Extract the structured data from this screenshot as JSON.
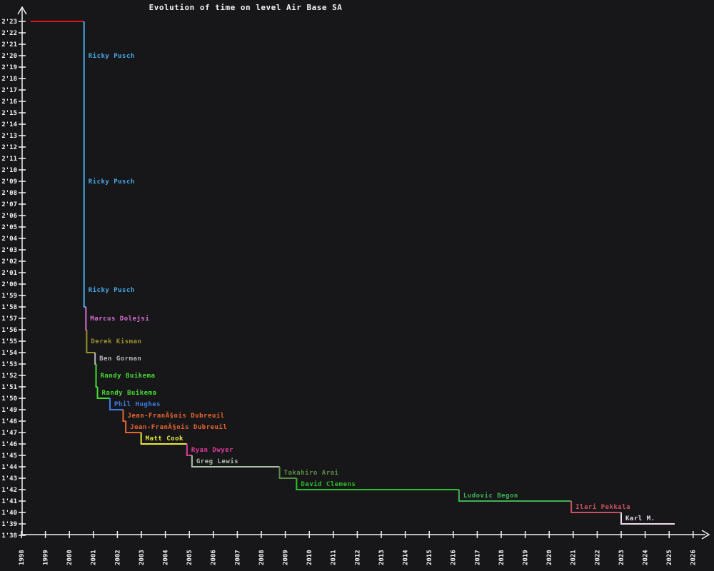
{
  "chart_data": {
    "type": "line",
    "subtype": "step-record-progression",
    "title": "Evolution of time on level Air Base SA",
    "background_color": "#17171a",
    "axis_color": "#f2f2f2",
    "grid": false,
    "legend": "none (inline colored labels next to each record drop)",
    "xlabel": "",
    "ylabel": "",
    "x_axis": {
      "unit": "year",
      "range": [
        1998,
        2026
      ],
      "ticks": [
        1998,
        1999,
        2000,
        2001,
        2002,
        2003,
        2004,
        2005,
        2006,
        2007,
        2008,
        2009,
        2010,
        2011,
        2012,
        2013,
        2014,
        2015,
        2016,
        2017,
        2018,
        2019,
        2020,
        2021,
        2022,
        2023,
        2024,
        2025,
        2026
      ],
      "tick_label_rotation_deg": -90
    },
    "y_axis": {
      "unit": "time (minutes'seconds)",
      "top_seconds": 143,
      "bottom_seconds": 98,
      "ticks": [
        "2'23",
        "2'22",
        "2'21",
        "2'20",
        "2'19",
        "2'18",
        "2'17",
        "2'16",
        "2'15",
        "2'14",
        "2'13",
        "2'12",
        "2'11",
        "2'10",
        "2'09",
        "2'08",
        "2'07",
        "2'06",
        "2'05",
        "2'04",
        "2'03",
        "2'02",
        "2'01",
        "2'00",
        "1'59",
        "1'58",
        "1'57",
        "1'56",
        "1'55",
        "1'54",
        "1'53",
        "1'52",
        "1'51",
        "1'50",
        "1'49",
        "1'48",
        "1'47",
        "1'46",
        "1'45",
        "1'44",
        "1'43",
        "1'42",
        "1'41",
        "1'40",
        "1'39",
        "1'38"
      ]
    },
    "records": [
      {
        "player": "",
        "time": "2'23",
        "seconds": 143,
        "year": 1998.38,
        "color": "#e01414"
      },
      {
        "player": "Ricky Pusch",
        "time": "2'17",
        "seconds": 137,
        "year": 2000.61,
        "color": "#45aae8"
      },
      {
        "player": "Ricky Pusch",
        "time": "2'01",
        "seconds": 121,
        "year": 2000.61,
        "color": "#45aae8"
      },
      {
        "player": "Ricky Pusch",
        "time": "1'58",
        "seconds": 118,
        "year": 2000.61,
        "color": "#45aae8"
      },
      {
        "player": "Marcus Dolejsi",
        "time": "1'56",
        "seconds": 116,
        "year": 2000.69,
        "color": "#d96fd0"
      },
      {
        "player": "Derek Kisman",
        "time": "1'54",
        "seconds": 114,
        "year": 2000.72,
        "color": "#9a9226"
      },
      {
        "player": "Ben Gorman",
        "time": "1'53",
        "seconds": 113,
        "year": 2001.07,
        "color": "#b6b6b6"
      },
      {
        "player": "Randy Buikema",
        "time": "1'51",
        "seconds": 111,
        "year": 2001.11,
        "color": "#46dc32"
      },
      {
        "player": "Randy Buikema",
        "time": "1'50",
        "seconds": 110,
        "year": 2001.17,
        "color": "#46dc32"
      },
      {
        "player": "Phil Hughes",
        "time": "1'49",
        "seconds": 109,
        "year": 2001.69,
        "color": "#3c7de6"
      },
      {
        "player": "Jean-FranÃ§ois Dubreuil",
        "time": "1'48",
        "seconds": 108,
        "year": 2002.24,
        "color": "#e8652e"
      },
      {
        "player": "Jean-FranÃ§ois Dubreuil",
        "time": "1'47",
        "seconds": 107,
        "year": 2002.35,
        "color": "#e8652e"
      },
      {
        "player": "Matt Cook",
        "time": "1'46",
        "seconds": 106,
        "year": 2002.99,
        "color": "#e9e93b"
      },
      {
        "player": "Ryan Dwyer",
        "time": "1'45",
        "seconds": 105,
        "year": 2004.9,
        "color": "#e23a98"
      },
      {
        "player": "Greg Lewis",
        "time": "1'44",
        "seconds": 104,
        "year": 2005.11,
        "color": "#a9bfa9"
      },
      {
        "player": "Takahiro Arai",
        "time": "1'43",
        "seconds": 103,
        "year": 2008.76,
        "color": "#5c8c46"
      },
      {
        "player": "David Clemens",
        "time": "1'42",
        "seconds": 102,
        "year": 2009.47,
        "color": "#2abf2a"
      },
      {
        "player": "Ludovic Begon",
        "time": "1'41",
        "seconds": 101,
        "year": 2016.24,
        "color": "#3fb354"
      },
      {
        "player": "Ilari Pekkala",
        "time": "1'40",
        "seconds": 100,
        "year": 2020.92,
        "color": "#c75161"
      },
      {
        "player": "Karl M.",
        "time": "1'39",
        "seconds": 99,
        "year": 2023.0,
        "color": "#eedcee"
      }
    ],
    "series_end_year": 2025.23
  }
}
